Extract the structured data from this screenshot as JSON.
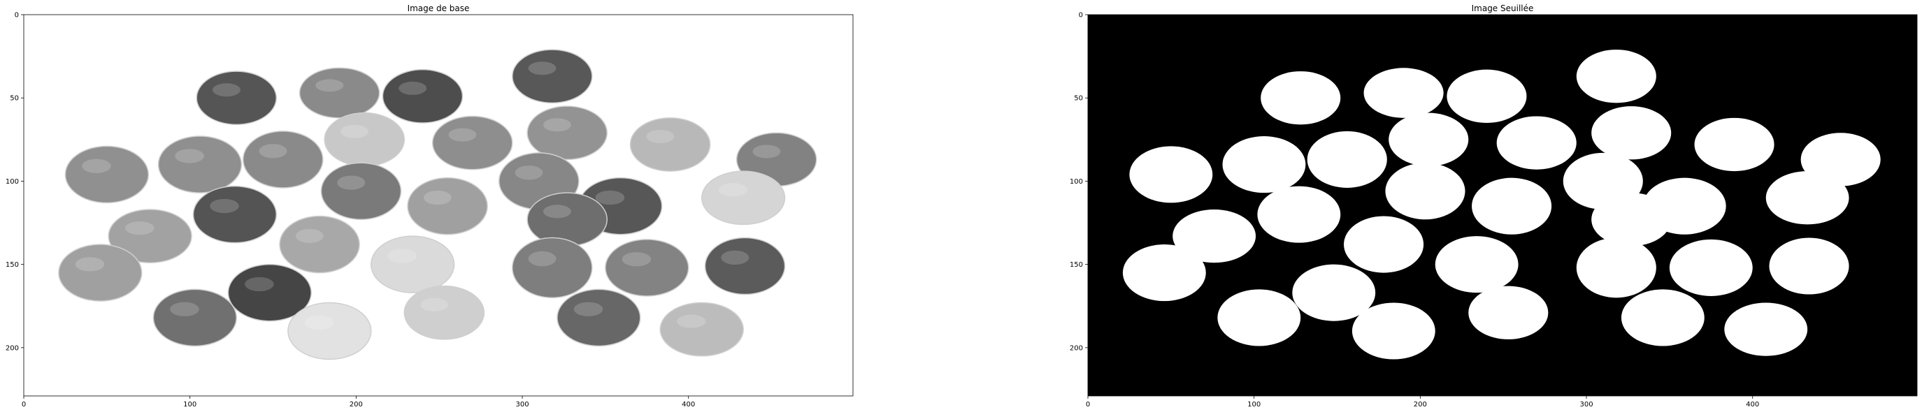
{
  "figure": {
    "panels": [
      {
        "id": "base",
        "title": "Image de base",
        "background": "#ffffff",
        "x_ticks": [
          "0",
          "100",
          "200",
          "300",
          "400"
        ],
        "y_ticks": [
          "0",
          "50",
          "100",
          "150",
          "200"
        ],
        "xlim": [
          0,
          499
        ],
        "ylim": [
          229,
          0
        ]
      },
      {
        "id": "thresh",
        "title": "Image Seuillée",
        "background": "#000000",
        "x_ticks": [
          "0",
          "100",
          "200",
          "300",
          "400"
        ],
        "y_ticks": [
          "0",
          "50",
          "100",
          "150",
          "200"
        ],
        "xlim": [
          0,
          499
        ],
        "ylim": [
          229,
          0
        ]
      }
    ],
    "objects": [
      {
        "x": 128,
        "y": 50,
        "rx": 24,
        "ry": 16,
        "g": "#555555"
      },
      {
        "x": 190,
        "y": 47,
        "rx": 24,
        "ry": 15,
        "g": "#8a8a8a"
      },
      {
        "x": 240,
        "y": 49,
        "rx": 24,
        "ry": 16,
        "g": "#4d4d4d"
      },
      {
        "x": 318,
        "y": 37,
        "rx": 24,
        "ry": 16,
        "g": "#585858"
      },
      {
        "x": 205,
        "y": 75,
        "rx": 24,
        "ry": 16,
        "g": "#c8c8c8"
      },
      {
        "x": 270,
        "y": 77,
        "rx": 24,
        "ry": 16,
        "g": "#8e8e8e"
      },
      {
        "x": 327,
        "y": 71,
        "rx": 24,
        "ry": 16,
        "g": "#939393"
      },
      {
        "x": 389,
        "y": 78,
        "rx": 24,
        "ry": 16,
        "g": "#b8b8b8"
      },
      {
        "x": 453,
        "y": 87,
        "rx": 24,
        "ry": 16,
        "g": "#828282"
      },
      {
        "x": 50,
        "y": 96,
        "rx": 25,
        "ry": 17,
        "g": "#909090"
      },
      {
        "x": 106,
        "y": 90,
        "rx": 25,
        "ry": 17,
        "g": "#8f8f8f"
      },
      {
        "x": 156,
        "y": 87,
        "rx": 24,
        "ry": 17,
        "g": "#8a8a8a"
      },
      {
        "x": 203,
        "y": 106,
        "rx": 24,
        "ry": 17,
        "g": "#7a7a7a"
      },
      {
        "x": 255,
        "y": 115,
        "rx": 24,
        "ry": 17,
        "g": "#a0a0a0"
      },
      {
        "x": 310,
        "y": 100,
        "rx": 24,
        "ry": 17,
        "g": "#878787"
      },
      {
        "x": 359,
        "y": 115,
        "rx": 25,
        "ry": 17,
        "g": "#575757"
      },
      {
        "x": 433,
        "y": 110,
        "rx": 25,
        "ry": 16,
        "g": "#d5d5d5"
      },
      {
        "x": 127,
        "y": 120,
        "rx": 25,
        "ry": 17,
        "g": "#545454"
      },
      {
        "x": 76,
        "y": 133,
        "rx": 25,
        "ry": 16,
        "g": "#a2a2a2"
      },
      {
        "x": 178,
        "y": 138,
        "rx": 24,
        "ry": 17,
        "g": "#a8a8a8"
      },
      {
        "x": 327,
        "y": 123,
        "rx": 24,
        "ry": 16,
        "g": "#6e6e6e"
      },
      {
        "x": 46,
        "y": 155,
        "rx": 25,
        "ry": 17,
        "g": "#a0a0a0"
      },
      {
        "x": 234,
        "y": 150,
        "rx": 25,
        "ry": 17,
        "g": "#dadada"
      },
      {
        "x": 318,
        "y": 152,
        "rx": 24,
        "ry": 18,
        "g": "#7e7e7e"
      },
      {
        "x": 375,
        "y": 152,
        "rx": 25,
        "ry": 17,
        "g": "#838383"
      },
      {
        "x": 434,
        "y": 151,
        "rx": 24,
        "ry": 17,
        "g": "#5b5b5b"
      },
      {
        "x": 148,
        "y": 167,
        "rx": 25,
        "ry": 17,
        "g": "#454545"
      },
      {
        "x": 103,
        "y": 182,
        "rx": 25,
        "ry": 17,
        "g": "#707070"
      },
      {
        "x": 184,
        "y": 190,
        "rx": 25,
        "ry": 17,
        "g": "#e2e2e2"
      },
      {
        "x": 253,
        "y": 179,
        "rx": 24,
        "ry": 16,
        "g": "#cfcfcf"
      },
      {
        "x": 346,
        "y": 182,
        "rx": 25,
        "ry": 17,
        "g": "#676767"
      },
      {
        "x": 408,
        "y": 189,
        "rx": 25,
        "ry": 16,
        "g": "#bcbcbc"
      }
    ]
  }
}
